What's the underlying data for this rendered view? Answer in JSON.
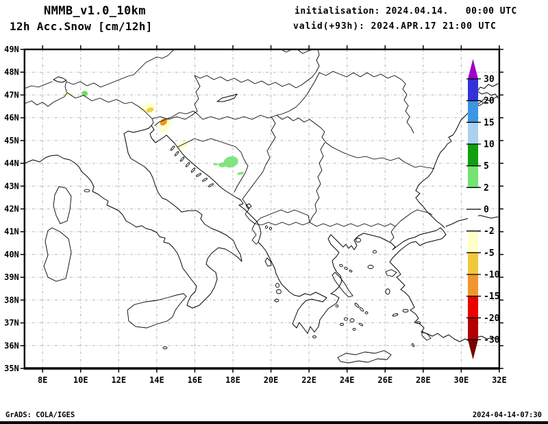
{
  "header": {
    "model_title": "NMMB_v1.0_10km",
    "field_title": "12h Acc.Snow [cm/12h]",
    "init_line": "initialisation: 2024.04.14.   00:00 UTC",
    "valid_line": "valid(+93h): 2024.APR.17 21:00 UTC"
  },
  "footer": {
    "grads_credit": "GrADS: COLA/IGES",
    "timestamp": "2024-04-14-07:30"
  },
  "chart_data": {
    "type": "map-shaded-contour",
    "title": "NMMB_v1.0_10km 12h Acc.Snow [cm/12h]",
    "region": "Central and Southeast Europe / Balkans / Italy / Greece",
    "lon_range": [
      7.05,
      32
    ],
    "lat_range": [
      35,
      49
    ],
    "grid": "dashed, 1 deg latitude x 2 deg longitude",
    "x_ticks": [
      {
        "v": 8,
        "label": "8E"
      },
      {
        "v": 10,
        "label": "10E"
      },
      {
        "v": 12,
        "label": "12E"
      },
      {
        "v": 14,
        "label": "14E"
      },
      {
        "v": 16,
        "label": "16E"
      },
      {
        "v": 18,
        "label": "18E"
      },
      {
        "v": 20,
        "label": "20E"
      },
      {
        "v": 22,
        "label": "22E"
      },
      {
        "v": 24,
        "label": "24E"
      },
      {
        "v": 26,
        "label": "26E"
      },
      {
        "v": 28,
        "label": "28E"
      },
      {
        "v": 30,
        "label": "30E"
      },
      {
        "v": 32,
        "label": "32E"
      }
    ],
    "y_ticks": [
      {
        "v": 49,
        "label": "49N"
      },
      {
        "v": 48,
        "label": "48N"
      },
      {
        "v": 47,
        "label": "47N"
      },
      {
        "v": 46,
        "label": "46N"
      },
      {
        "v": 45,
        "label": "45N"
      },
      {
        "v": 44,
        "label": "44N"
      },
      {
        "v": 43,
        "label": "43N"
      },
      {
        "v": 42,
        "label": "42N"
      },
      {
        "v": 41,
        "label": "41N"
      },
      {
        "v": 40,
        "label": "40N"
      },
      {
        "v": 39,
        "label": "39N"
      },
      {
        "v": 38,
        "label": "38N"
      },
      {
        "v": 37,
        "label": "37N"
      },
      {
        "v": 36,
        "label": "36N"
      },
      {
        "v": 35,
        "label": "35N"
      }
    ],
    "colorbar": {
      "position": "right",
      "units": "cm/12h",
      "levels": [
        30,
        20,
        15,
        10,
        5,
        2,
        0,
        -2,
        -5,
        -10,
        -15,
        -20,
        -30
      ],
      "cell_colors": [
        "#3232d8",
        "#3c96e1",
        "#aad2f0",
        "#0fa00f",
        "#73e373",
        "#ffffff",
        "#ffffff",
        "#ffffc8",
        "#f0c83c",
        "#f0962e",
        "#eb0000",
        "#b40000"
      ],
      "over_color": "#a000c8",
      "under_color": "#780000"
    },
    "snow_patches": [
      {
        "lon": 9.34,
        "lat": 47.04,
        "rx": 7,
        "ry": 2.5,
        "rot": 0,
        "color": "#ffffc8",
        "value_range": "-5 to -2"
      },
      {
        "lon": 10.21,
        "lat": 47.06,
        "rx": 4.5,
        "ry": 4,
        "rot": 0,
        "color": "#69df5b",
        "value_range": "2 to 5"
      },
      {
        "lon": 13.57,
        "lat": 46.44,
        "rx": 11,
        "ry": 6,
        "rot": -20,
        "color": "#ffffc8",
        "value_range": "-5 to -2"
      },
      {
        "lon": 13.64,
        "lat": 46.34,
        "rx": 5.5,
        "ry": 3.5,
        "rot": -20,
        "color": "#f0d24b",
        "value_range": "-10 to -5"
      },
      {
        "lon": 14.42,
        "lat": 45.69,
        "rx": 11.5,
        "ry": 8,
        "rot": -50,
        "color": "#ffffc8",
        "value_range": "-5 to -2"
      },
      {
        "lon": 14.36,
        "lat": 45.82,
        "rx": 6,
        "ry": 4.5,
        "rot": -50,
        "color": "#eb9628",
        "value_range": "-15 to -10"
      },
      {
        "lon": 15.34,
        "lat": 44.78,
        "rx": 9.5,
        "ry": 5,
        "rot": -40,
        "color": "#ffffc8",
        "value_range": "-5 to -2"
      },
      {
        "lon": 17.89,
        "lat": 44.06,
        "rx": 11,
        "ry": 8,
        "rot": -15,
        "color": "#7ce87c",
        "value_range": "2 to 5"
      },
      {
        "lon": 17.44,
        "lat": 43.93,
        "rx": 5.5,
        "ry": 3.5,
        "rot": 0,
        "color": "#7ce87c",
        "value_range": "2 to 5"
      },
      {
        "lon": 17.1,
        "lat": 43.96,
        "rx": 3.5,
        "ry": 1.5,
        "rot": 0,
        "color": "#7ce87c",
        "value_range": "2 to 5"
      },
      {
        "lon": 18.4,
        "lat": 43.56,
        "rx": 5,
        "ry": 2,
        "rot": -10,
        "color": "#7ce87c",
        "value_range": "2 to 5"
      }
    ]
  }
}
